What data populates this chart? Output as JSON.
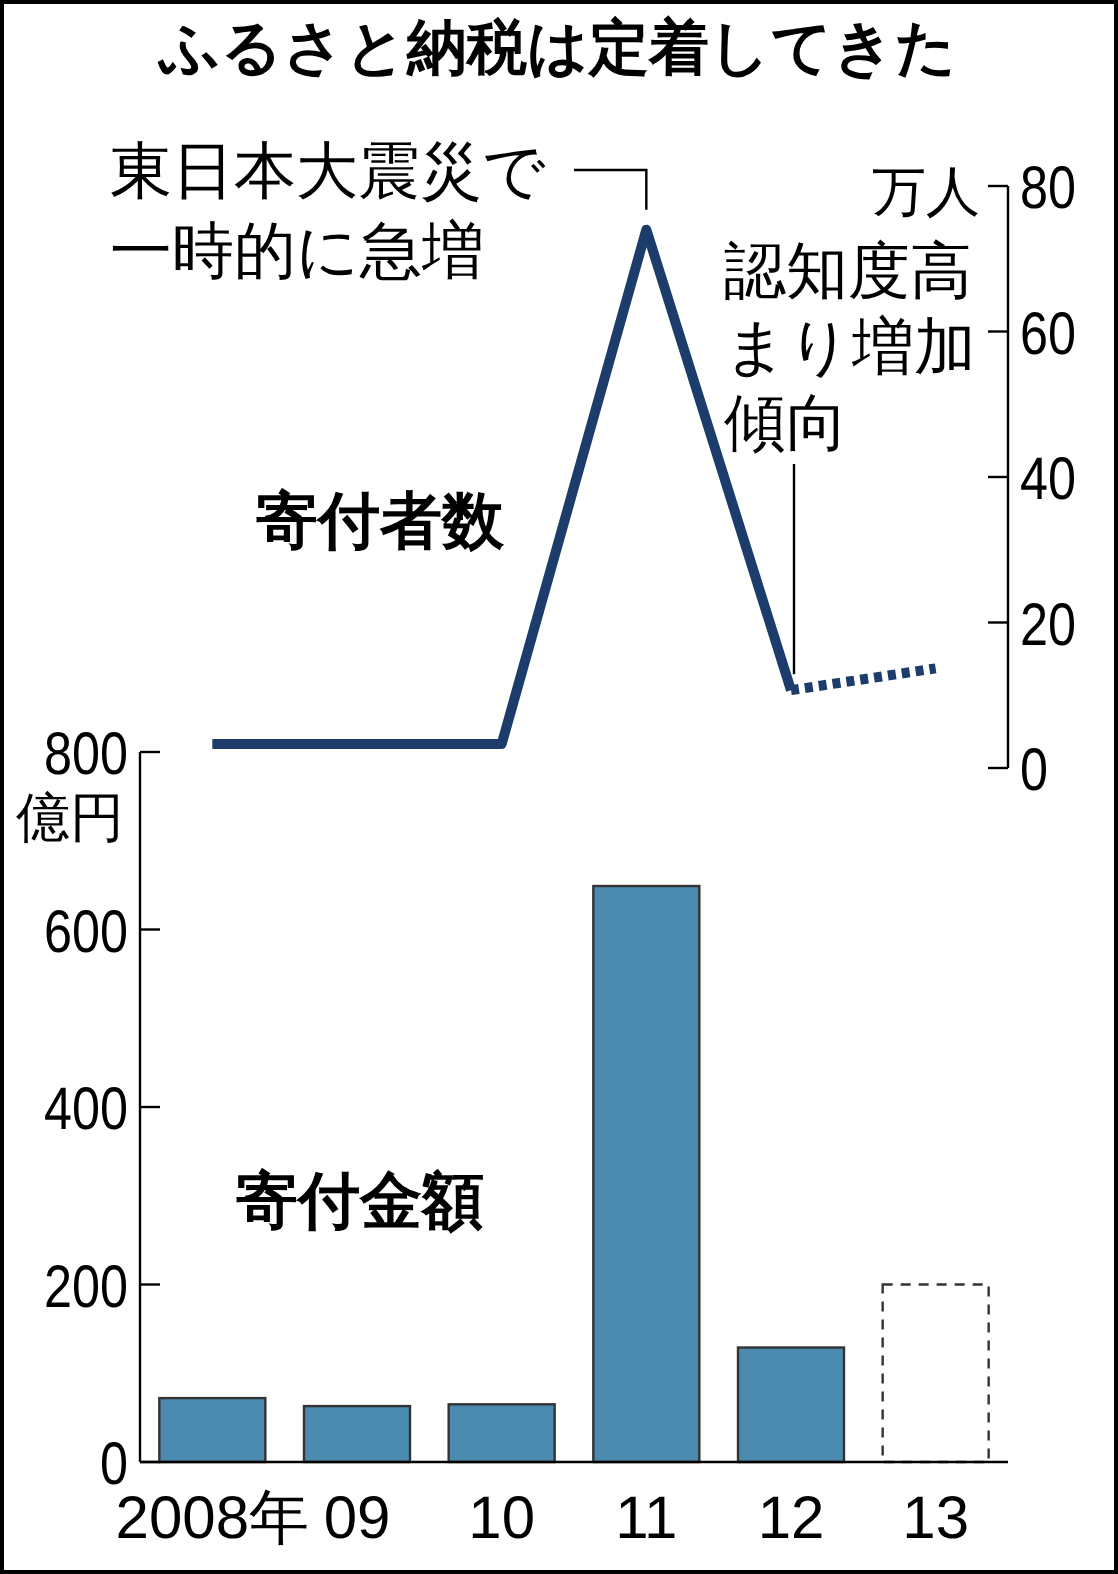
{
  "chart_data": [
    {
      "type": "line",
      "title": "ふるさと納税は定着してきた",
      "categories": [
        "2008年",
        "09",
        "10",
        "11",
        "12",
        "13"
      ],
      "tick_labels": "y",
      "ylabel": "万人",
      "ylim": [
        0,
        80
      ],
      "yticks": [
        0,
        20,
        40,
        60,
        80
      ],
      "grid": false,
      "legend": false,
      "series": [
        {
          "name": "寄付者数",
          "color": "#1c3d6b",
          "line_style": "solid",
          "values": [
            3.3,
            3.3,
            3.3,
            74,
            10.7,
            null
          ]
        },
        {
          "color": "#1c3d6b",
          "line_style": "dotted",
          "values": [
            null,
            null,
            null,
            null,
            10.7,
            13.7
          ]
        }
      ],
      "annotations": [
        {
          "text": "東日本大震災で一時的に急増",
          "x": "11",
          "y": 74
        },
        {
          "text": "認知度高まり増加傾向",
          "x": "12",
          "y": 10.7
        }
      ]
    },
    {
      "type": "bar",
      "categories": [
        "2008年",
        "09",
        "10",
        "11",
        "12",
        "13"
      ],
      "ylabel": "億円",
      "ylim": [
        0,
        800
      ],
      "yticks": [
        0,
        200,
        400,
        600,
        800
      ],
      "grid": false,
      "legend": false,
      "series": [
        {
          "name": "寄付金額",
          "color": "#4b8bb0",
          "line_style": "solid",
          "values": [
            72,
            63,
            65,
            649,
            129,
            null
          ]
        },
        {
          "color": "#ffffff",
          "line_style": "dashed",
          "values": [
            null,
            null,
            null,
            null,
            null,
            200
          ]
        }
      ]
    }
  ]
}
